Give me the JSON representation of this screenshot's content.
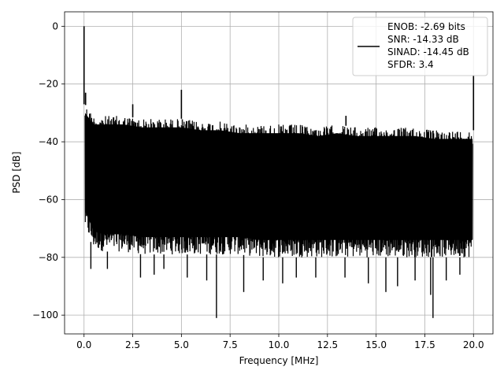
{
  "chart_data": {
    "type": "line",
    "xlabel": "Frequency [MHz]",
    "ylabel": "PSD [dB]",
    "xlim": [
      -1.0,
      21.0
    ],
    "ylim": [
      -106.5,
      5.0
    ],
    "grid": true,
    "legend_placement": "top-right",
    "line_color": "#000000",
    "x_ticks": [
      0.0,
      2.5,
      5.0,
      7.5,
      10.0,
      12.5,
      15.0,
      17.5,
      20.0
    ],
    "x_tick_labels": [
      "0.0",
      "2.5",
      "5.0",
      "7.5",
      "10.0",
      "12.5",
      "15.0",
      "17.5",
      "20.0"
    ],
    "y_ticks": [
      0,
      -20,
      -40,
      -60,
      -80,
      -100
    ],
    "y_tick_labels": [
      "0",
      "−20",
      "−40",
      "−60",
      "−80",
      "−100"
    ],
    "legend_lines": [
      "ENOB: -2.69 bits",
      "SNR: -14.33 dB",
      "SINAD: -14.45 dB",
      "SFDR: 3.4"
    ],
    "envelope": {
      "x": [
        0.05,
        0.5,
        1,
        2,
        3,
        4,
        5,
        6,
        7,
        8,
        9,
        10,
        11,
        12,
        13,
        14,
        15,
        16,
        17,
        18,
        19,
        19.95
      ],
      "upper": [
        -27,
        -31,
        -31,
        -31,
        -32,
        -32,
        -32,
        -33,
        -33,
        -34,
        -34,
        -34,
        -34,
        -35,
        -34,
        -35,
        -35,
        -35,
        -35,
        -36,
        -36,
        -36
      ],
      "lower": [
        -70,
        -77,
        -78,
        -78,
        -79,
        -79,
        -79,
        -79,
        -79,
        -79,
        -80,
        -80,
        -80,
        -80,
        -80,
        -80,
        -80,
        -80,
        -80,
        -80,
        -80,
        -80
      ]
    },
    "peaks": [
      {
        "x": 0.0,
        "y": 0
      },
      {
        "x": 0.08,
        "y": -23
      },
      {
        "x": 2.5,
        "y": -27
      },
      {
        "x": 5.0,
        "y": -22
      },
      {
        "x": 13.45,
        "y": -31
      },
      {
        "x": 20.0,
        "y": -17
      }
    ],
    "dips": [
      {
        "x": 0.35,
        "y": -84
      },
      {
        "x": 1.2,
        "y": -84
      },
      {
        "x": 2.9,
        "y": -87
      },
      {
        "x": 3.6,
        "y": -86
      },
      {
        "x": 4.1,
        "y": -84
      },
      {
        "x": 5.3,
        "y": -87
      },
      {
        "x": 6.3,
        "y": -88
      },
      {
        "x": 6.8,
        "y": -101
      },
      {
        "x": 8.2,
        "y": -92
      },
      {
        "x": 9.2,
        "y": -88
      },
      {
        "x": 10.2,
        "y": -89
      },
      {
        "x": 10.9,
        "y": -87
      },
      {
        "x": 11.9,
        "y": -87
      },
      {
        "x": 13.4,
        "y": -87
      },
      {
        "x": 14.6,
        "y": -89
      },
      {
        "x": 15.5,
        "y": -92
      },
      {
        "x": 16.1,
        "y": -90
      },
      {
        "x": 17.0,
        "y": -88
      },
      {
        "x": 17.8,
        "y": -93
      },
      {
        "x": 17.92,
        "y": -101
      },
      {
        "x": 18.6,
        "y": -88
      },
      {
        "x": 19.3,
        "y": -86
      }
    ]
  }
}
